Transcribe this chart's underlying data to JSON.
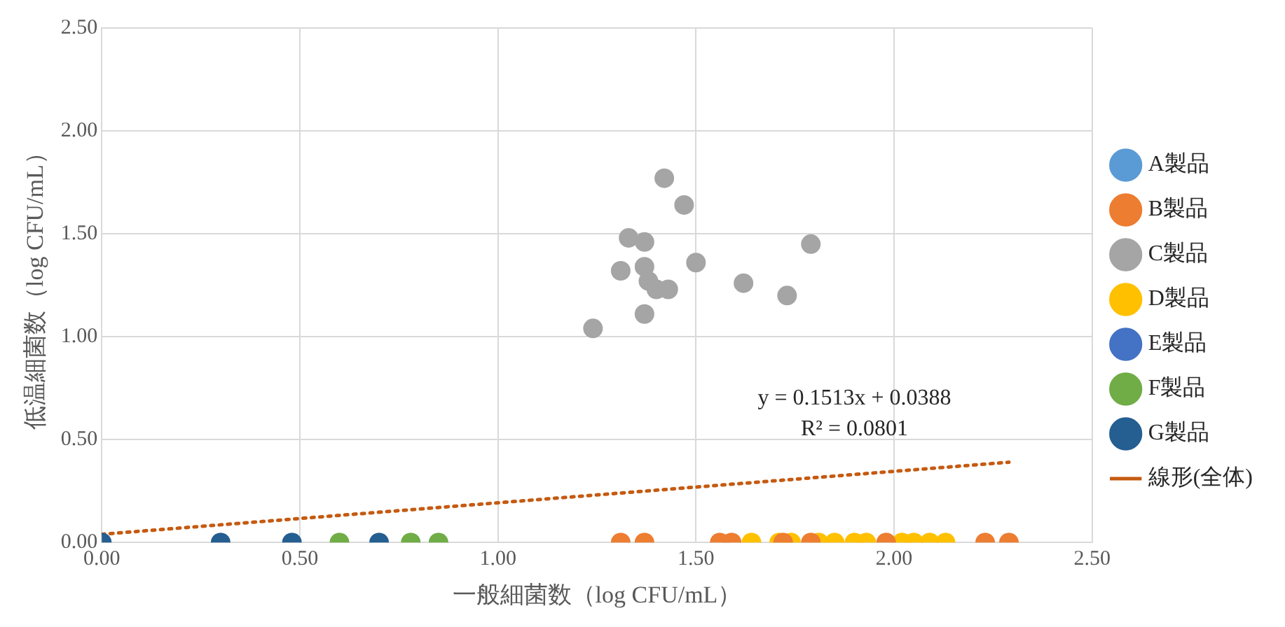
{
  "chart_data": {
    "type": "scatter",
    "xlabel": "一般細菌数（log CFU/mL）",
    "ylabel": "低温細菌数（log CFU/mL）",
    "xlim": [
      0,
      2.5
    ],
    "ylim": [
      0,
      2.5
    ],
    "xticks": [
      {
        "value": 0,
        "label": "0.00"
      },
      {
        "value": 0.5,
        "label": "0.50"
      },
      {
        "value": 1,
        "label": "1.00"
      },
      {
        "value": 1.5,
        "label": "1.50"
      },
      {
        "value": 2,
        "label": "2.00"
      },
      {
        "value": 2.5,
        "label": "2.50"
      }
    ],
    "yticks": [
      {
        "value": 0,
        "label": "0.00"
      },
      {
        "value": 0.5,
        "label": "0.50"
      },
      {
        "value": 1,
        "label": "1.00"
      },
      {
        "value": 1.5,
        "label": "1.50"
      },
      {
        "value": 2,
        "label": "2.00"
      },
      {
        "value": 2.5,
        "label": "2.50"
      }
    ],
    "grid": true,
    "legend": "right",
    "marker": "circle",
    "annotations": [
      "y = 0.1513x + 0.0388",
      "R² = 0.0801"
    ],
    "series": [
      {
        "name": "A製品",
        "color": "#5b9bd5"
      },
      {
        "name": "B製品",
        "color": "#ed7d31",
        "x": [
          1.31,
          1.37,
          1.56,
          1.59,
          1.72,
          1.79,
          1.98,
          2.23,
          2.29
        ],
        "values": [
          0,
          0,
          0,
          0,
          0,
          0,
          0,
          0,
          0
        ]
      },
      {
        "name": "C製品",
        "color": "#a5a5a5",
        "x": [
          1.42,
          1.47,
          1.33,
          1.37,
          1.79,
          1.31,
          1.37,
          1.5,
          1.38,
          1.4,
          1.43,
          1.62,
          1.73,
          1.37,
          1.24
        ],
        "values": [
          1.77,
          1.64,
          1.48,
          1.46,
          1.45,
          1.32,
          1.34,
          1.36,
          1.27,
          1.23,
          1.23,
          1.26,
          1.2,
          1.11,
          1.04
        ]
      },
      {
        "name": "D製品",
        "color": "#ffc000",
        "x": [
          1.64,
          1.71,
          1.74,
          1.81,
          1.85,
          1.9,
          1.93,
          2.02,
          2.05,
          2.09,
          2.13
        ],
        "values": [
          0,
          0,
          0,
          0,
          0,
          0,
          0,
          0,
          0,
          0,
          0
        ]
      },
      {
        "name": "E製品",
        "color": "#4472c4"
      },
      {
        "name": "F製品",
        "color": "#70ad47",
        "x": [
          0.6,
          0.78,
          0.85
        ],
        "values": [
          0,
          0,
          0
        ]
      },
      {
        "name": "G製品",
        "color": "#255e91",
        "x": [
          0,
          0.3,
          0.48,
          0.7
        ],
        "values": [
          0,
          0,
          0,
          0
        ]
      },
      {
        "name": "線形(全体)",
        "type": "line",
        "color": "#c55a11",
        "line_style": "dotted",
        "marker": "none",
        "x": [
          0,
          2.29
        ],
        "values": [
          0.04,
          0.39
        ]
      }
    ]
  }
}
